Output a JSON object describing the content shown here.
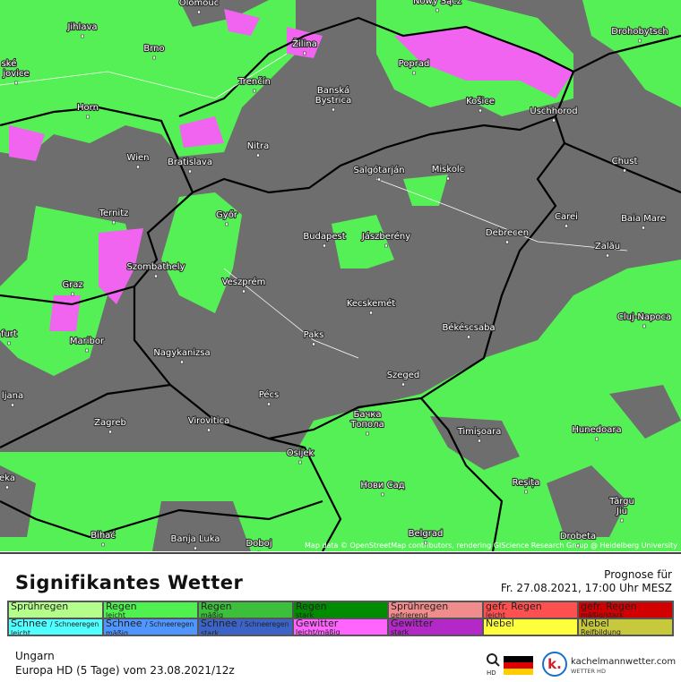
{
  "map": {
    "cities": [
      "Olomouc",
      "Nowy Sącz",
      "Jihlava",
      "Drohobytsch",
      "Žilina",
      "Brno",
      "Poprad",
      "ské",
      "jovice",
      "Trenčín",
      "Banská",
      "Bystrica",
      "Košice",
      "Horn",
      "Uschhorod",
      "Nitra",
      "Wien",
      "Bratislava",
      "Chust",
      "Salgótarján",
      "Miskolc",
      "Ternitz",
      "Győr",
      "Carei",
      "Baia Mare",
      "Budapest",
      "Jászberény",
      "Debrecen",
      "Zalău",
      "Szombathely",
      "Graz",
      "Veszprém",
      "Cluj-Napoca",
      "Kecskemét",
      "Paks",
      "Békéscsaba",
      "furt",
      "Maribor",
      "Nagykanizsa",
      "Szeged",
      "ljana",
      "Pécs",
      "Бачка",
      "Тополa",
      "Zagreb",
      "Virovitica",
      "Timișoara",
      "Hunedoara",
      "Osijek",
      "eka",
      "Нови Сад",
      "Reșița",
      "Târgu",
      "Jiu",
      "Bihać",
      "Banja Luka",
      "Doboj",
      "Belgrad",
      "Drobeta"
    ],
    "attribution": "Map data © OpenStreetMap contributors, rendering GIScience Research Group @ Heidelberg University"
  },
  "legend": {
    "title": "Signifikantes Wetter",
    "items": [
      {
        "label": "Sprühregen",
        "color": "#b4ff8c"
      },
      {
        "label": "Regen",
        "sub": "leicht",
        "color": "#50f050"
      },
      {
        "label": "Regen",
        "sub": "mäßig",
        "color": "#3cc03c"
      },
      {
        "label": "Regen",
        "sub": "stark",
        "color": "#008c00"
      },
      {
        "label": "Sprühregen",
        "sub": "gefrierend",
        "color": "#f08c8c"
      },
      {
        "label": "gefr. Regen",
        "sub": "leicht",
        "color": "#ff5050"
      },
      {
        "label": "gefr. Regen",
        "sub": "mäßig/stark",
        "color": "#d20000"
      },
      {
        "label": "Schnee",
        "extra": "/ Schneeregen",
        "sub": "leicht",
        "color": "#50ffff"
      },
      {
        "label": "Schnee",
        "extra": "/ Schneeregen",
        "sub": "mäßig",
        "color": "#5096ff"
      },
      {
        "label": "Schnee",
        "extra": "/ Schneeregen",
        "sub": "stark",
        "color": "#3c64c8"
      },
      {
        "label": "Gewitter",
        "sub": "leicht/mäßig",
        "color": "#ff64ff"
      },
      {
        "label": "Gewitter",
        "sub": "stark",
        "color": "#b428c8"
      },
      {
        "label": "Nebel",
        "color": "#ffff3c"
      },
      {
        "label": "Nebel",
        "sub": "Reifbildung",
        "color": "#c8c83c"
      }
    ]
  },
  "forecast": {
    "label": "Prognose für",
    "date": "Fr. 27.08.2021, 17:00 Uhr MESZ"
  },
  "footer": {
    "region": "Ungarn",
    "model": "Europa HD (5 Tage) vom  23.08.2021/12z"
  },
  "logo": {
    "hd": "HD",
    "site": "kachelmannwetter.com",
    "sub": "WETTER HD"
  }
}
